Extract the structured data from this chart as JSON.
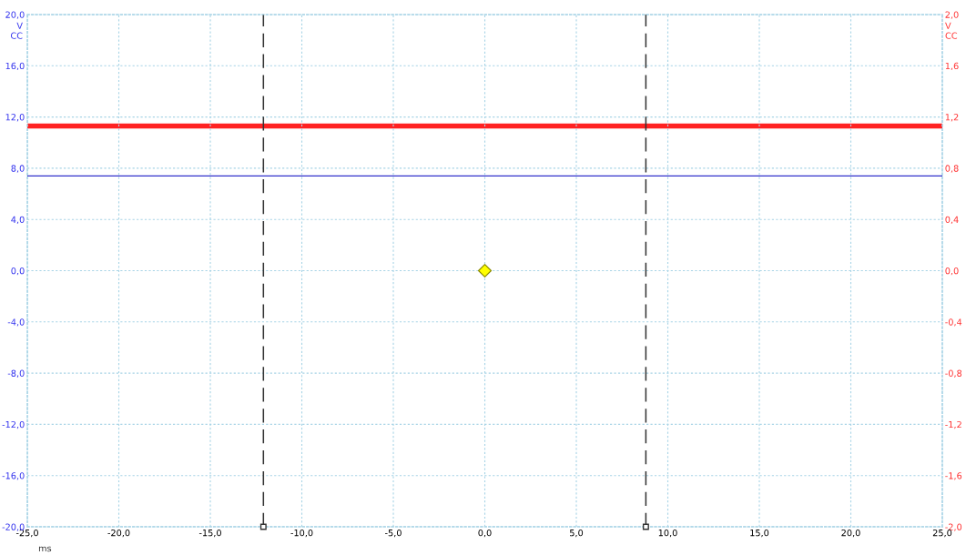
{
  "chart_data": {
    "type": "line",
    "xlabel": "ms",
    "ylabel": "V\nCC",
    "y2label": "V\nCC",
    "xlim": [
      -25,
      25
    ],
    "xticks": [
      {
        "value": -25,
        "label": "-25,0"
      },
      {
        "value": -20,
        "label": "-20,0"
      },
      {
        "value": -15,
        "label": "-15,0"
      },
      {
        "value": -10,
        "label": "-10,0"
      },
      {
        "value": -5,
        "label": "-5,0"
      },
      {
        "value": 0,
        "label": "0,0"
      },
      {
        "value": 5,
        "label": "5,0"
      },
      {
        "value": 10,
        "label": "10,0"
      },
      {
        "value": 15,
        "label": "15,0"
      },
      {
        "value": 20,
        "label": "20,0"
      },
      {
        "value": 25,
        "label": "25,0"
      }
    ],
    "ylim": [
      -20,
      20
    ],
    "yticks": [
      {
        "value": -20,
        "label": "-20,0"
      },
      {
        "value": -16,
        "label": "-16,0"
      },
      {
        "value": -12,
        "label": "-12,0"
      },
      {
        "value": -8,
        "label": "-8,0"
      },
      {
        "value": -4,
        "label": "-4,0"
      },
      {
        "value": 0,
        "label": "0,0"
      },
      {
        "value": 4,
        "label": "4,0"
      },
      {
        "value": 8,
        "label": "8,0"
      },
      {
        "value": 12,
        "label": "12,0"
      },
      {
        "value": 16,
        "label": "16,0"
      },
      {
        "value": 20,
        "label": "20,0"
      }
    ],
    "y2lim": [
      -2,
      2
    ],
    "y2ticks": [
      {
        "value": -2,
        "label": "-2,0"
      },
      {
        "value": -1.6,
        "label": "-1,6"
      },
      {
        "value": -1.2,
        "label": "-1,2"
      },
      {
        "value": -0.8,
        "label": "-0,8"
      },
      {
        "value": -0.4,
        "label": "-0,4"
      },
      {
        "value": 0,
        "label": "0,0"
      },
      {
        "value": 0.4,
        "label": "0,4"
      },
      {
        "value": 0.8,
        "label": "0,8"
      },
      {
        "value": 1.2,
        "label": "1,2"
      },
      {
        "value": 1.6,
        "label": "1,6"
      },
      {
        "value": 2,
        "label": "2,0"
      }
    ],
    "grid": true,
    "line_style": "solid",
    "series": [
      {
        "color": "#3333cc",
        "x": [
          -25,
          25
        ],
        "values": [
          7.4,
          7.4
        ]
      },
      {
        "color": "#ff2222",
        "axis": "y2",
        "x": [
          -25,
          25
        ],
        "values": [
          1.13,
          1.13
        ]
      },
      {
        "type": "scatter",
        "color": "#ffff00",
        "marker": "diamond",
        "x": [
          0
        ],
        "values": [
          0
        ]
      }
    ],
    "ref_lines": [
      {
        "axis": "x",
        "value": -12.1,
        "color": "#333333",
        "line_style": "dashed"
      },
      {
        "axis": "x",
        "value": 8.8,
        "color": "#333333",
        "line_style": "dashed"
      }
    ]
  }
}
